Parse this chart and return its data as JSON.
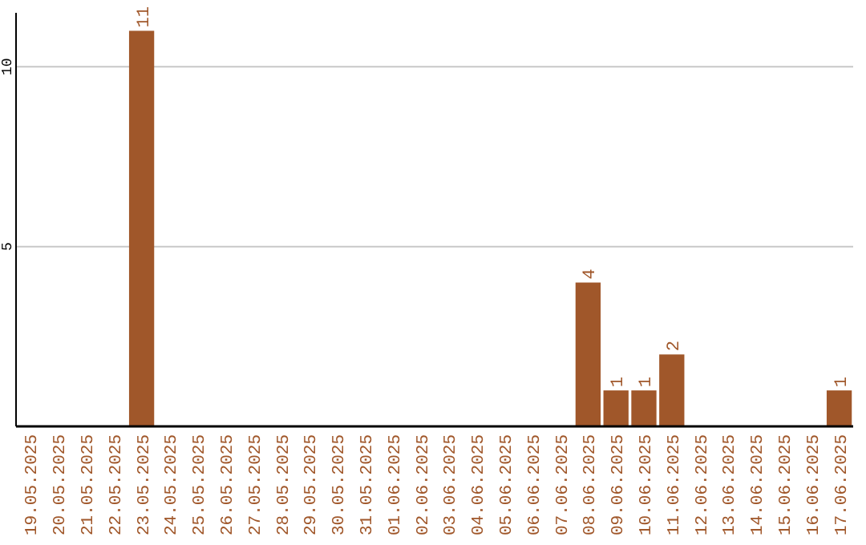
{
  "chart_data": {
    "type": "bar",
    "categories": [
      "19.05.2025",
      "20.05.2025",
      "21.05.2025",
      "22.05.2025",
      "23.05.2025",
      "24.05.2025",
      "25.05.2025",
      "26.05.2025",
      "27.05.2025",
      "28.05.2025",
      "29.05.2025",
      "30.05.2025",
      "31.05.2025",
      "01.06.2025",
      "02.06.2025",
      "03.06.2025",
      "04.06.2025",
      "05.06.2025",
      "06.06.2025",
      "07.06.2025",
      "08.06.2025",
      "09.06.2025",
      "10.06.2025",
      "11.06.2025",
      "12.06.2025",
      "13.06.2025",
      "14.06.2025",
      "15.06.2025",
      "16.06.2025",
      "17.06.2025"
    ],
    "values": [
      0,
      0,
      0,
      0,
      11,
      0,
      0,
      0,
      0,
      0,
      0,
      0,
      0,
      0,
      0,
      0,
      0,
      0,
      0,
      0,
      4,
      1,
      1,
      2,
      0,
      0,
      0,
      0,
      0,
      1
    ],
    "value_labels": [
      null,
      null,
      null,
      null,
      "11",
      null,
      null,
      null,
      null,
      null,
      null,
      null,
      null,
      null,
      null,
      null,
      null,
      null,
      null,
      null,
      "4",
      "1",
      "1",
      "2",
      null,
      null,
      null,
      null,
      null,
      "1"
    ],
    "color": "#a0572a",
    "ylim": [
      0,
      11.5
    ],
    "yticks": [
      5,
      10
    ],
    "grid": "y"
  }
}
